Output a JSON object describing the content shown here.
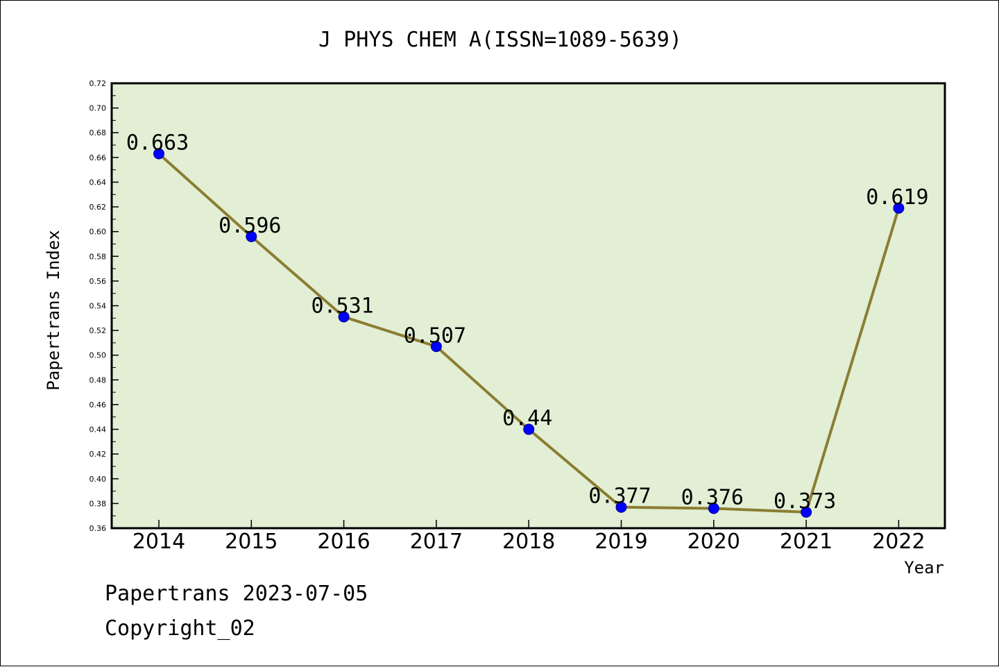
{
  "chart_data": {
    "type": "line",
    "title": "J PHYS CHEM A(ISSN=1089-5639)",
    "xlabel": "Year",
    "ylabel": "Papertrans Index",
    "categories": [
      "2014",
      "2015",
      "2016",
      "2017",
      "2018",
      "2019",
      "2020",
      "2021",
      "2022"
    ],
    "values": [
      0.663,
      0.596,
      0.531,
      0.507,
      0.44,
      0.377,
      0.376,
      0.373,
      0.619
    ],
    "data_labels": [
      "0.663",
      "0.596",
      "0.531",
      "0.507",
      "0.44",
      "0.377",
      "0.376",
      "0.373",
      "0.619"
    ],
    "ylim": [
      0.36,
      0.72
    ],
    "yticks": [
      "0.36",
      "0.38",
      "0.40",
      "0.42",
      "0.44",
      "0.46",
      "0.48",
      "0.50",
      "0.52",
      "0.54",
      "0.56",
      "0.58",
      "0.60",
      "0.62",
      "0.64",
      "0.66",
      "0.68",
      "0.70",
      "0.72"
    ],
    "grid": false,
    "colors": {
      "plot_background": "#e2efd5",
      "line": "#8b7d32",
      "marker": "#0000ff"
    }
  },
  "footer": {
    "line1": "Papertrans 2023-07-05",
    "line2": "Copyright_02"
  }
}
